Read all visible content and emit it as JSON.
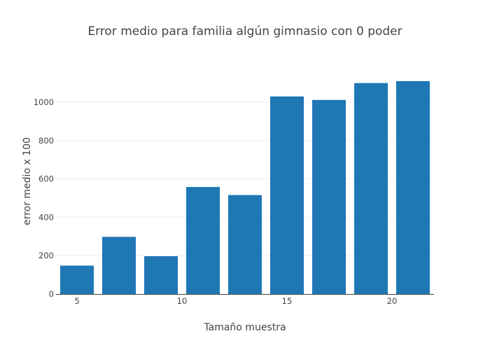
{
  "chart_data": {
    "type": "bar",
    "title": "Error medio para familia algún gimnasio con 0 poder",
    "xlabel": "Tamaño muestra",
    "ylabel": "error medio x 100",
    "x": [
      5,
      7,
      9,
      11,
      13,
      15,
      17,
      19,
      21
    ],
    "values": [
      148,
      298,
      197,
      558,
      516,
      1030,
      1012,
      1100,
      1110
    ],
    "xlim": [
      4,
      22
    ],
    "ylim": [
      0,
      1168
    ],
    "xticks": [
      5,
      10,
      15,
      20
    ],
    "yticks": [
      0,
      200,
      400,
      600,
      800,
      1000
    ],
    "bar_width": 1.6,
    "grid": true,
    "colors": {
      "bar": "#1f77b4",
      "grid": "#eeeeee",
      "axis": "#444444",
      "text": "#444444"
    }
  }
}
